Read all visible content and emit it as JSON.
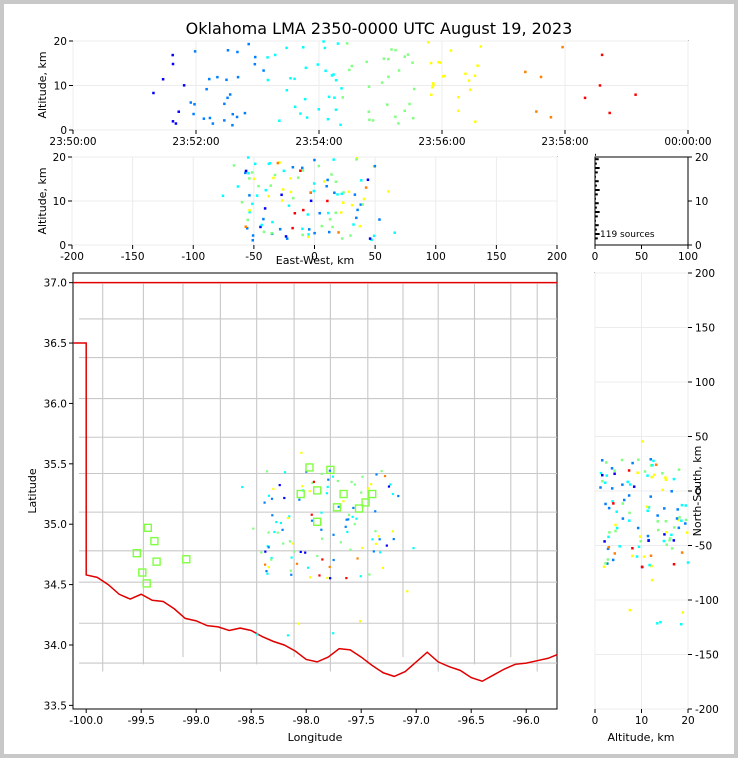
{
  "title": "Oklahoma LMA 2350-0000 UTC August 19, 2023",
  "time_plot": {
    "ylabel": "Altitude, km",
    "xticks": [
      "23:50:00",
      "23:52:00",
      "23:54:00",
      "23:56:00",
      "23:58:00",
      "00:00:00"
    ],
    "yticks": [
      "0",
      "10",
      "20"
    ]
  },
  "ew_plot": {
    "ylabel": "Altitude, km",
    "xlabel": "East-West, km",
    "xticks": [
      "-200",
      "-150",
      "-100",
      "-50",
      "0",
      "50",
      "100",
      "150",
      "200"
    ],
    "yticks": [
      "0",
      "10",
      "20"
    ]
  },
  "hist_plot": {
    "xticks": [
      "0",
      "50",
      "100"
    ],
    "yticks": [
      "0",
      "10",
      "20"
    ],
    "sources_label": "119 sources"
  },
  "map_plot": {
    "ylabel": "Latitude",
    "xlabel": "Longitude",
    "xticks": [
      "-100.0",
      "-99.5",
      "-99.0",
      "-98.5",
      "-98.0",
      "-97.5",
      "-97.0",
      "-96.5",
      "-96.0"
    ],
    "yticks": [
      "33.5",
      "34.0",
      "34.5",
      "35.0",
      "35.5",
      "36.0",
      "36.5",
      "37.0"
    ]
  },
  "ns_plot": {
    "ylabel": "North-South, km",
    "xlabel": "Altitude, km",
    "xticks": [
      "0",
      "10",
      "20"
    ],
    "yticks": [
      "200",
      "150",
      "100",
      "50",
      "0",
      "-50",
      "-100",
      "-150",
      "-200"
    ]
  },
  "chart_data": {
    "type": "scatter",
    "source_count": 119,
    "colormap": [
      "#00008b",
      "#0000ff",
      "#0080ff",
      "#00ffff",
      "#80ff80",
      "#ffff00",
      "#ff8000",
      "#ff0000",
      "#8b0000"
    ],
    "time_axis_minutes_after_2350": [
      0,
      10
    ],
    "altitude_range_km": [
      0,
      20
    ],
    "ew_range_km": [
      -200,
      200
    ],
    "ns_range_km": [
      -200,
      200
    ],
    "lon_range": [
      -100.12,
      -95.72
    ],
    "lat_range": [
      33.47,
      37.08
    ],
    "station_color": "#80ff40",
    "stations": [
      {
        "lon": -98.05,
        "lat": 35.25
      },
      {
        "lon": -97.97,
        "lat": 35.47
      },
      {
        "lon": -97.9,
        "lat": 35.28
      },
      {
        "lon": -97.9,
        "lat": 35.02
      },
      {
        "lon": -97.78,
        "lat": 35.45
      },
      {
        "lon": -97.72,
        "lat": 35.14
      },
      {
        "lon": -97.66,
        "lat": 35.25
      },
      {
        "lon": -97.52,
        "lat": 35.13
      },
      {
        "lon": -97.46,
        "lat": 35.18
      },
      {
        "lon": -97.4,
        "lat": 35.25
      },
      {
        "lon": -99.44,
        "lat": 34.97
      },
      {
        "lon": -99.38,
        "lat": 34.86
      },
      {
        "lon": -99.54,
        "lat": 34.76
      },
      {
        "lon": -99.36,
        "lat": 34.69
      },
      {
        "lon": -99.09,
        "lat": 34.71
      },
      {
        "lon": -99.49,
        "lat": 34.6
      },
      {
        "lon": -99.45,
        "lat": 34.51
      }
    ]
  }
}
